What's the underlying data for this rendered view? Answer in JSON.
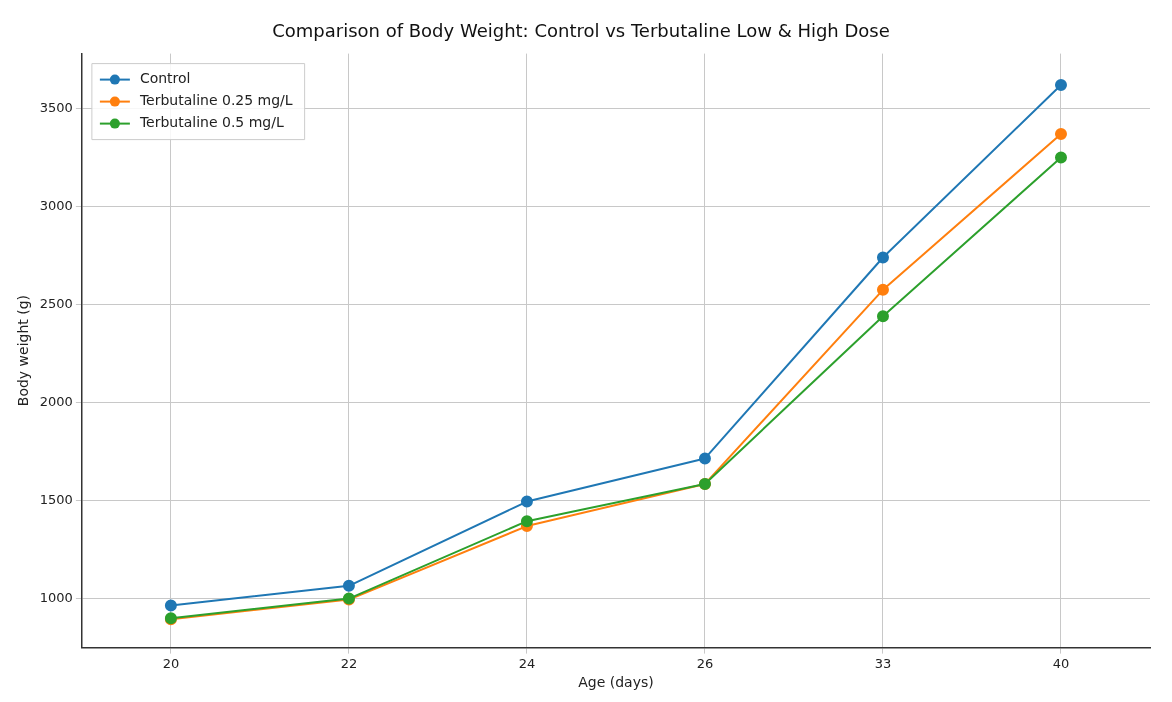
{
  "chart_data": {
    "type": "line",
    "title": "Comparison of Body Weight: Control vs Terbutaline Low & High Dose",
    "xlabel": "Age (days)",
    "ylabel": "Body weight (g)",
    "categories": [
      "20",
      "22",
      "24",
      "26",
      "33",
      "40"
    ],
    "series": [
      {
        "name": "Control",
        "color": "#1f77b4",
        "values": [
          965,
          1065,
          1495,
          1715,
          2740,
          3620
        ]
      },
      {
        "name": "Terbutaline 0.25 mg/L",
        "color": "#ff7f0e",
        "values": [
          895,
          995,
          1370,
          1585,
          2575,
          3370
        ]
      },
      {
        "name": "Terbutaline 0.5 mg/L",
        "color": "#2ca02c",
        "values": [
          900,
          1000,
          1395,
          1585,
          2440,
          3250
        ]
      }
    ],
    "ylim": [
      750,
      3780
    ],
    "yticks": [
      1000,
      1500,
      2000,
      2500,
      3000,
      3500
    ],
    "grid": true,
    "legend": "top left",
    "marker": "circle",
    "line_style": "solid"
  }
}
